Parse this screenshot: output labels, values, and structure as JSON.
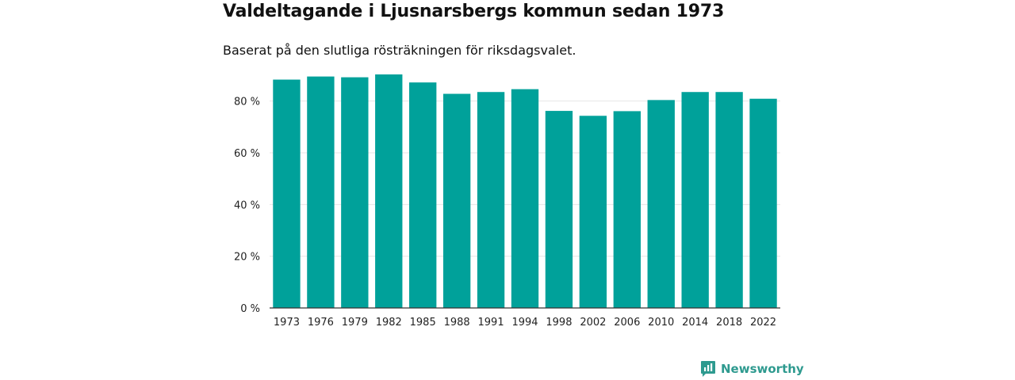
{
  "header": {
    "title": "Valdeltagande i Ljusnarsbergs kommun sedan 1973",
    "subtitle": "Baserat på den slutliga rösträkningen för riksdagsvalet."
  },
  "brand": {
    "name": "Newsworthy",
    "icon": "newsworthy-logo-icon",
    "color": "#2e9a8f"
  },
  "colors": {
    "bar": "#00a19a",
    "grid": "#e6e6e6",
    "axis": "#333333"
  },
  "chart_data": {
    "type": "bar",
    "title": "Valdeltagande i Ljusnarsbergs kommun sedan 1973",
    "subtitle": "Baserat på den slutliga rösträkningen för riksdagsvalet.",
    "xlabel": "",
    "ylabel": "",
    "categories": [
      "1973",
      "1976",
      "1979",
      "1982",
      "1985",
      "1988",
      "1991",
      "1994",
      "1998",
      "2002",
      "2006",
      "2010",
      "2014",
      "2018",
      "2022"
    ],
    "values": [
      88.3,
      89.5,
      89.2,
      90.3,
      87.2,
      82.8,
      83.5,
      84.6,
      76.2,
      74.3,
      76.1,
      80.4,
      83.5,
      83.5,
      80.9
    ],
    "ylim": [
      0,
      90
    ],
    "yticks": [
      0,
      20,
      40,
      60,
      80
    ],
    "ytick_labels": [
      "0 %",
      "20 %",
      "40 %",
      "60 %",
      "80 %"
    ],
    "grid": true
  }
}
